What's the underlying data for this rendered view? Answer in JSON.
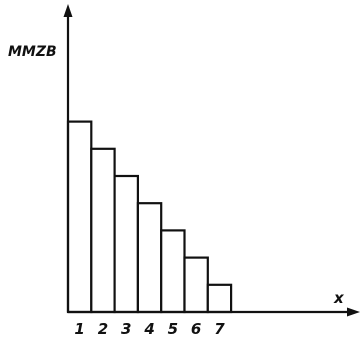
{
  "chart_data": {
    "type": "bar",
    "categories": [
      "1",
      "2",
      "3",
      "4",
      "5",
      "6",
      "7"
    ],
    "values": [
      7,
      6,
      5,
      4,
      3,
      2,
      1
    ],
    "title": "",
    "xlabel": "x",
    "ylabel": "MMZB",
    "grid": false,
    "legend": "none"
  }
}
